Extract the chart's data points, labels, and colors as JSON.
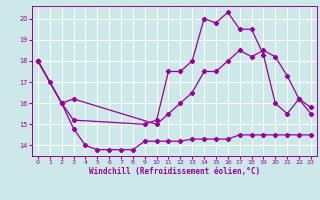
{
  "xlabel": "Windchill (Refroidissement éolien,°C)",
  "background_color": "#cce8e8",
  "grid_color": "#ffffff",
  "line_color": "#990099",
  "xlim": [
    -0.5,
    23.5
  ],
  "ylim": [
    13.5,
    20.6
  ],
  "xticks": [
    0,
    1,
    2,
    3,
    4,
    5,
    6,
    7,
    8,
    9,
    10,
    11,
    12,
    13,
    14,
    15,
    16,
    17,
    18,
    19,
    20,
    21,
    22,
    23
  ],
  "yticks": [
    14,
    15,
    16,
    17,
    18,
    19,
    20
  ],
  "line1_x": [
    0,
    1,
    2,
    3,
    4,
    5,
    6,
    7,
    8,
    9,
    10,
    11,
    12,
    13,
    14,
    15,
    16,
    17,
    18,
    19,
    20,
    21,
    22,
    23
  ],
  "line1_y": [
    18.0,
    17.0,
    16.0,
    14.8,
    14.0,
    13.8,
    13.8,
    13.8,
    13.8,
    14.2,
    14.2,
    14.2,
    14.2,
    14.3,
    14.3,
    14.3,
    14.3,
    14.5,
    14.5,
    14.5,
    14.5,
    14.5,
    14.5,
    14.5
  ],
  "line2_x": [
    0,
    2,
    3,
    10,
    11,
    12,
    13,
    14,
    15,
    16,
    17,
    18,
    19,
    20,
    21,
    22,
    23
  ],
  "line2_y": [
    18.0,
    16.0,
    16.2,
    15.0,
    15.5,
    16.0,
    16.5,
    17.5,
    17.5,
    18.0,
    18.5,
    18.2,
    18.5,
    18.2,
    17.3,
    16.2,
    15.8
  ],
  "line3_x": [
    0,
    2,
    3,
    9,
    10,
    11,
    12,
    13,
    14,
    15,
    16,
    17,
    18,
    19,
    20,
    21,
    22,
    23
  ],
  "line3_y": [
    18.0,
    16.0,
    15.2,
    15.0,
    15.2,
    17.5,
    17.5,
    18.0,
    20.0,
    19.8,
    20.3,
    19.5,
    19.5,
    18.3,
    16.0,
    15.5,
    16.2,
    15.5
  ]
}
